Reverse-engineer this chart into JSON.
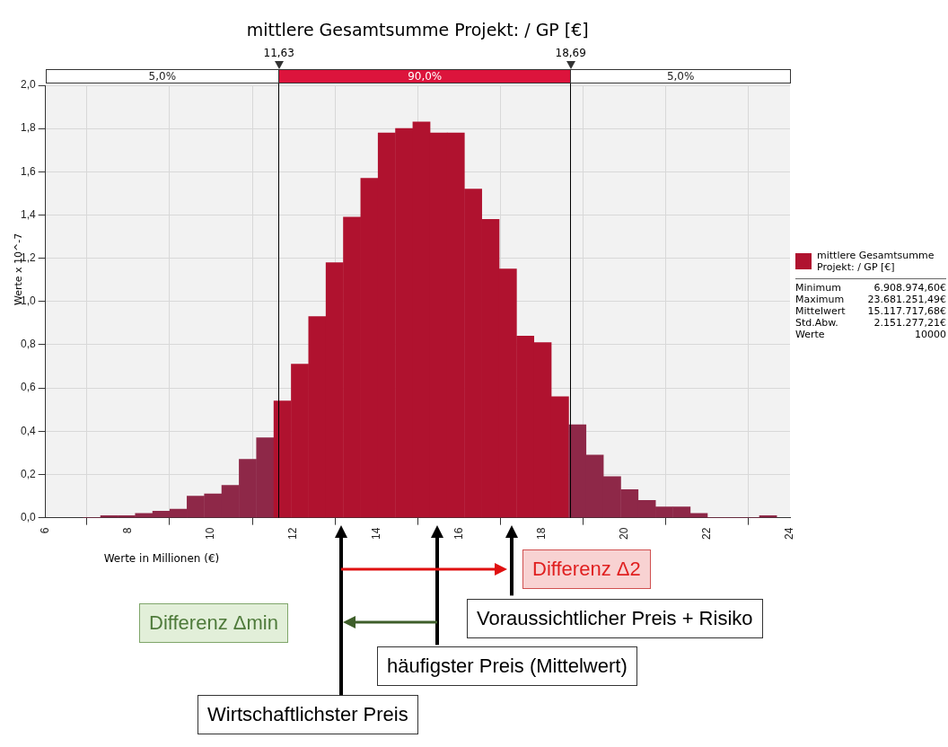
{
  "chart_data": {
    "type": "histogram",
    "title": "mittlere Gesamtsumme Projekt: / GP [€]",
    "xlabel": "Werte in Millionen (€)",
    "ylabel": "Werte x 10^-7",
    "bins": [
      6.91,
      7.33,
      7.75,
      8.17,
      8.59,
      9.01,
      9.42,
      9.84,
      10.26,
      10.68,
      11.1,
      11.52,
      11.94,
      12.36,
      12.78,
      13.2,
      13.62,
      14.04,
      14.46,
      14.88,
      15.3,
      15.71,
      16.13,
      16.55,
      16.97,
      17.39,
      17.81,
      18.23,
      18.65,
      19.07,
      19.49,
      19.91,
      20.33,
      20.75,
      21.17,
      21.59,
      22.0,
      22.42,
      22.84,
      23.26,
      23.68
    ],
    "series": [
      {
        "name": "mittlere Gesamtsumme Projekt: / GP [€]",
        "color": "#b0122f",
        "colors": [
          "#8e2848",
          "#8e2848",
          "#8e2848",
          "#8e2848",
          "#8e2848",
          "#8e2848",
          "#8e2848",
          "#8e2848",
          "#8e2848",
          "#8e2848",
          "#8e2848",
          "#b0122f",
          "#b0122f",
          "#b0122f",
          "#b0122f",
          "#b0122f",
          "#b0122f",
          "#b0122f",
          "#b0122f",
          "#b0122f",
          "#b0122f",
          "#b0122f",
          "#b0122f",
          "#b0122f",
          "#b0122f",
          "#b0122f",
          "#b0122f",
          "#b0122f",
          "#8e2848",
          "#8e2848",
          "#8e2848",
          "#8e2848",
          "#8e2848",
          "#8e2848",
          "#8e2848",
          "#8e2848",
          "#8e2848",
          "#8e2848",
          "#8e2848",
          "#8e2848"
        ],
        "values": [
          0,
          0.01,
          0.01,
          0.02,
          0.03,
          0.04,
          0.1,
          0.11,
          0.15,
          0.27,
          0.37,
          0.54,
          0.71,
          0.93,
          1.18,
          1.39,
          1.57,
          1.78,
          1.8,
          1.83,
          1.78,
          1.78,
          1.52,
          1.38,
          1.15,
          0.84,
          0.81,
          0.56,
          0.43,
          0.29,
          0.19,
          0.13,
          0.08,
          0.05,
          0.05,
          0.02,
          0,
          0,
          0,
          0.01
        ]
      }
    ],
    "xlim": [
      6,
      24
    ],
    "xticks": [
      6,
      8,
      10,
      12,
      14,
      16,
      18,
      20,
      22,
      24
    ],
    "ylim": [
      0,
      2
    ],
    "yticks": [
      {
        "value": 0,
        "label": "0,0"
      },
      {
        "value": 0.2,
        "label": "0,2"
      },
      {
        "value": 0.4,
        "label": "0,4"
      },
      {
        "value": 0.6,
        "label": "0,6"
      },
      {
        "value": 0.8,
        "label": "0,8"
      },
      {
        "value": 1,
        "label": "1,0"
      },
      {
        "value": 1.2,
        "label": "1,2"
      },
      {
        "value": 1.4,
        "label": "1,4"
      },
      {
        "value": 1.6,
        "label": "1,6"
      },
      {
        "value": 1.8,
        "label": "1,8"
      },
      {
        "value": 2,
        "label": "2,0"
      }
    ],
    "grid": true,
    "legend": "right",
    "ref_lines": [
      {
        "axis": "x",
        "value": 11.63,
        "label": "11,63",
        "color": "#000000"
      },
      {
        "axis": "x",
        "value": 18.69,
        "label": "18,69",
        "color": "#000000"
      }
    ],
    "annotations": [
      "5,0%",
      "90,0%",
      "5,0%",
      "Wirtschaftlichster Preis",
      "häufigster Preis (Mittelwert)",
      "Voraussichtlicher Preis + Risiko",
      "Differenz Δ2",
      "Differenz Δmin",
      "Minimum 6.908.974,60€",
      "Maximum 23.681.251,49€",
      "Mittelwert 15.117.717,68€",
      "Std.Abw. 2.151.277,21€",
      "Werte 10000"
    ]
  }
}
